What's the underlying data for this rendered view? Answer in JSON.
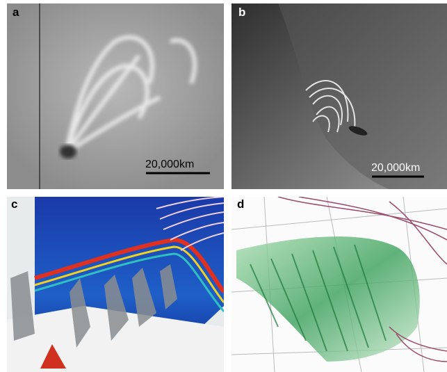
{
  "panels": [
    {
      "label": "a",
      "scale_bar": "20,000km"
    },
    {
      "label": "b",
      "scale_bar": "20,000km"
    },
    {
      "label": "c"
    },
    {
      "label": "d"
    }
  ]
}
